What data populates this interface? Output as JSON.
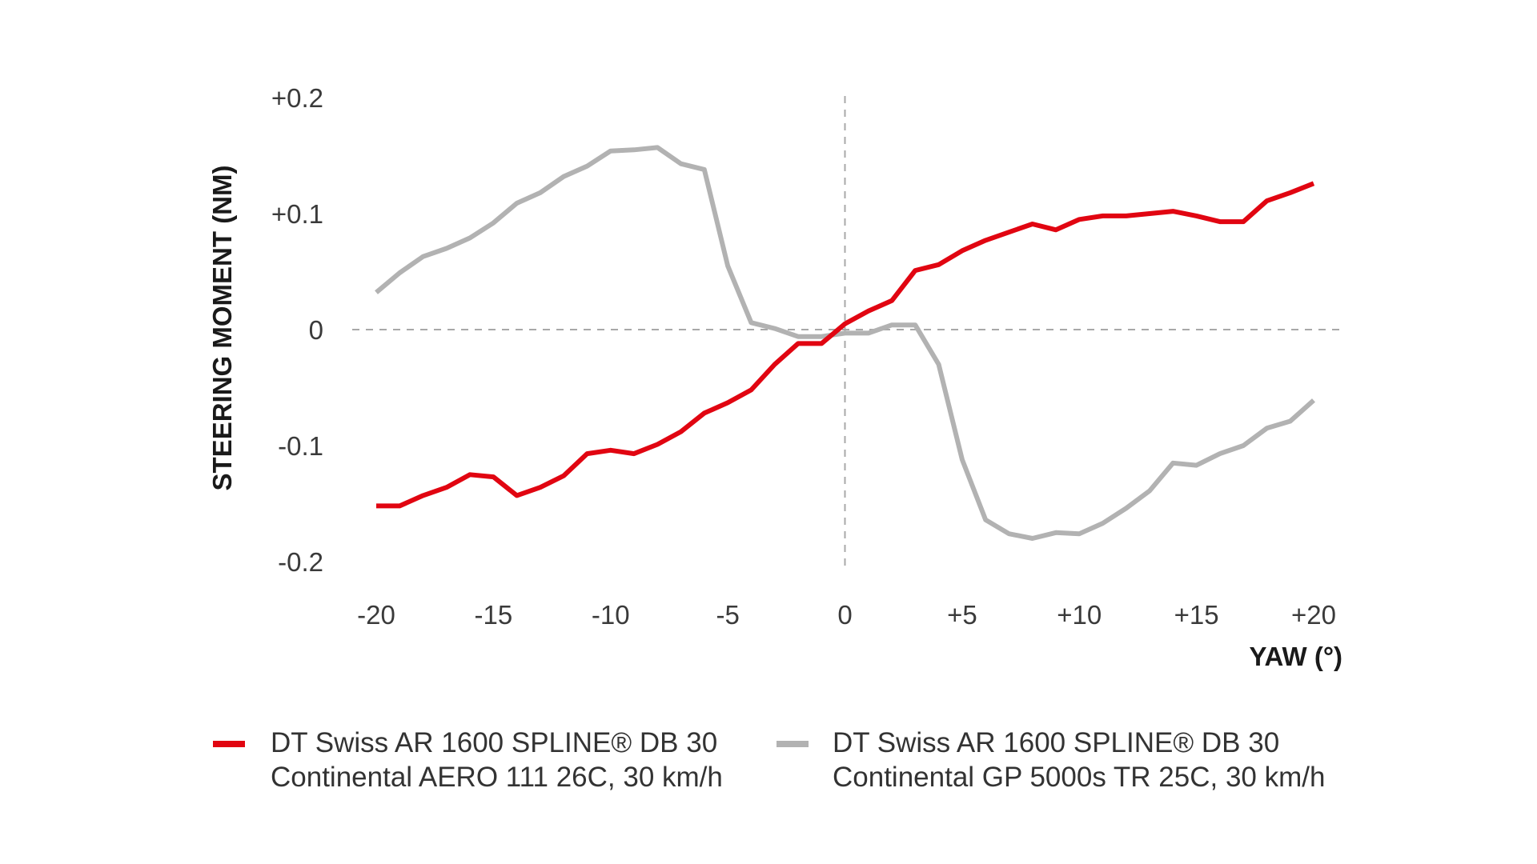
{
  "chart_data": {
    "type": "line",
    "title": "",
    "xlabel": "YAW (°)",
    "ylabel": "STEERING MOMENT (NM)",
    "xlim": [
      -20,
      20
    ],
    "ylim": [
      -0.2,
      0.2
    ],
    "x_ticks": [
      -20,
      -15,
      -10,
      -5,
      0,
      5,
      10,
      15,
      20
    ],
    "x_tick_labels": [
      "-20",
      "-15",
      "-10",
      "-5",
      "0",
      "+5",
      "+10",
      "+15",
      "+20"
    ],
    "y_ticks": [
      0.2,
      0.1,
      0,
      -0.1,
      -0.2
    ],
    "y_tick_labels": [
      "+0.2",
      "+0.1",
      "0",
      "-0.1",
      "-0.2"
    ],
    "reference_lines": "dashed lines at x = 0 and y = 0",
    "grid": false,
    "legend_position": "bottom",
    "x": [
      -20,
      -19,
      -18,
      -17,
      -16,
      -15,
      -14,
      -13,
      -12,
      -11,
      -10,
      -9,
      -8,
      -7,
      -6,
      -5,
      -4,
      -3,
      -2,
      -1,
      0,
      1,
      2,
      3,
      4,
      5,
      6,
      7,
      8,
      9,
      10,
      11,
      12,
      13,
      14,
      15,
      16,
      17,
      18,
      19,
      20
    ],
    "series": [
      {
        "line1": "DT Swiss AR 1600 SPLINE® DB 30",
        "line2": "Continental AERO 111 26C, 30 km/h",
        "color": "#e10511",
        "values": [
          -0.152,
          -0.152,
          -0.143,
          -0.136,
          -0.125,
          -0.127,
          -0.143,
          -0.136,
          -0.126,
          -0.107,
          -0.104,
          -0.107,
          -0.099,
          -0.088,
          -0.072,
          -0.063,
          -0.052,
          -0.03,
          -0.012,
          -0.012,
          0.005,
          0.016,
          0.025,
          0.051,
          0.056,
          0.068,
          0.077,
          0.084,
          0.091,
          0.086,
          0.095,
          0.098,
          0.098,
          0.1,
          0.102,
          0.098,
          0.093,
          0.093,
          0.111,
          0.118,
          0.126
        ]
      },
      {
        "line1": "DT Swiss AR 1600 SPLINE® DB 30",
        "line2": "Continental GP 5000s TR 25C, 30 km/h",
        "color": "#b2b2b2",
        "values": [
          0.032,
          0.049,
          0.063,
          0.07,
          0.079,
          0.092,
          0.109,
          0.118,
          0.132,
          0.141,
          0.154,
          0.155,
          0.157,
          0.143,
          0.138,
          0.055,
          0.006,
          0.001,
          -0.006,
          -0.006,
          -0.003,
          -0.003,
          0.004,
          0.004,
          -0.03,
          -0.112,
          -0.164,
          -0.176,
          -0.18,
          -0.175,
          -0.176,
          -0.167,
          -0.154,
          -0.139,
          -0.115,
          -0.117,
          -0.107,
          -0.1,
          -0.085,
          -0.079,
          -0.061
        ]
      }
    ]
  }
}
